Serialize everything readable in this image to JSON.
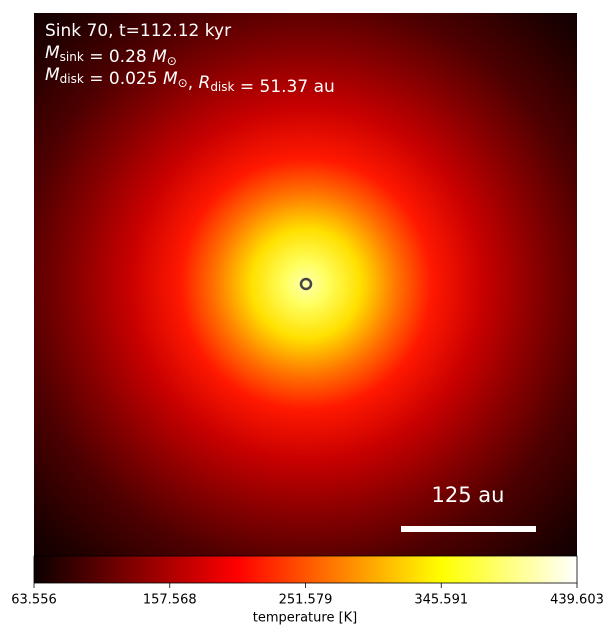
{
  "chart_data": {
    "type": "image",
    "annotation_lines": [
      [
        {
          "text": "Sink 70, t=112.12 kyr"
        }
      ],
      [
        {
          "text": "M",
          "italic": true
        },
        {
          "sub": "sink"
        },
        {
          "text": " = 0.28 "
        },
        {
          "text": "M",
          "italic": true
        },
        {
          "sub": "⊙"
        }
      ],
      [
        {
          "text": "M",
          "italic": true
        },
        {
          "sub": "disk"
        },
        {
          "text": " = 0.025 "
        },
        {
          "text": "M",
          "italic": true
        },
        {
          "sub": "⊙"
        },
        {
          "text": ", "
        },
        {
          "text": "R",
          "italic": true
        },
        {
          "sub": "disk"
        },
        {
          "text": " = 51.37 au"
        }
      ]
    ],
    "scale_bar_label": "125 au",
    "colorbar": {
      "label": "temperature [K]",
      "colormap": "hot",
      "clim": [
        63.556,
        439.603
      ],
      "ticks": [
        63.556,
        157.568,
        251.579,
        345.591,
        439.603
      ]
    }
  }
}
